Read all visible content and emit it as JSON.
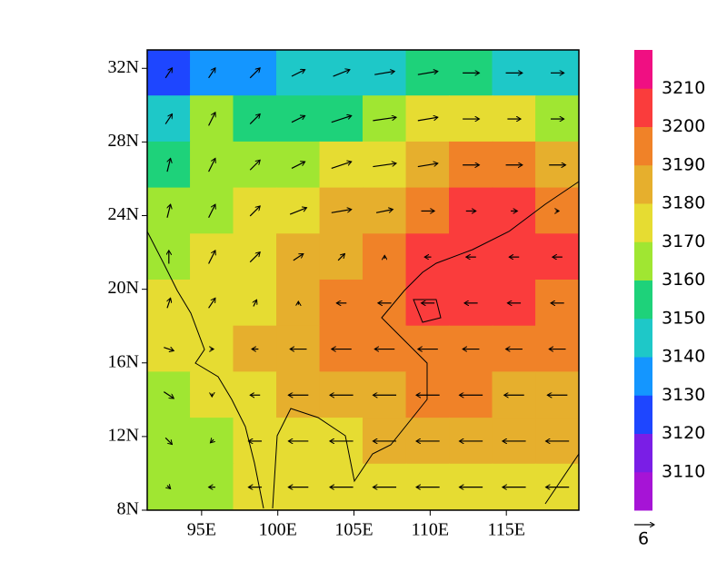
{
  "chart_data": {
    "type": "contour_map",
    "xlim": [
      91.43,
      119.76
    ],
    "ylim": [
      8,
      33
    ],
    "xticks": [
      {
        "value": 95,
        "label": "95E"
      },
      {
        "value": 100,
        "label": "100E"
      },
      {
        "value": 105,
        "label": "105E"
      },
      {
        "value": 110,
        "label": "110E"
      },
      {
        "value": 115,
        "label": "115E"
      }
    ],
    "yticks": [
      {
        "value": 8,
        "label": "8N"
      },
      {
        "value": 12,
        "label": "12N"
      },
      {
        "value": 16,
        "label": "16N"
      },
      {
        "value": 20,
        "label": "20N"
      },
      {
        "value": 24,
        "label": "24N"
      },
      {
        "value": 28,
        "label": "28N"
      },
      {
        "value": 32,
        "label": "32N"
      }
    ],
    "colorbar": {
      "levels": [
        3110,
        3120,
        3130,
        3140,
        3150,
        3160,
        3170,
        3180,
        3190,
        3200,
        3210
      ],
      "colors": [
        "#a614d6",
        "#7a1ee6",
        "#1e46ff",
        "#1496ff",
        "#1ec8c8",
        "#1ed27a",
        "#a0e632",
        "#e6dc32",
        "#e6af2d",
        "#f08228",
        "#fa3c3c",
        "#f00f82"
      ]
    },
    "reference_vector": 6,
    "grid": {
      "lon": [
        92.85,
        95.68,
        98.51,
        101.35,
        104.18,
        107.01,
        109.85,
        112.68,
        115.51,
        118.35
      ],
      "lat": [
        31.75,
        29.25,
        26.75,
        24.25,
        21.75,
        19.25,
        16.75,
        14.25,
        11.75,
        9.25
      ],
      "height": [
        [
          3125,
          3135,
          3138,
          3142,
          3145,
          3148,
          3150,
          3150,
          3145,
          3140
        ],
        [
          3140,
          3160,
          3155,
          3150,
          3158,
          3165,
          3172,
          3175,
          3170,
          3165
        ],
        [
          3150,
          3168,
          3165,
          3162,
          3170,
          3178,
          3185,
          3190,
          3190,
          3188
        ],
        [
          3160,
          3168,
          3172,
          3178,
          3182,
          3188,
          3195,
          3200,
          3202,
          3198
        ],
        [
          3165,
          3172,
          3176,
          3185,
          3188,
          3195,
          3202,
          3205,
          3205,
          3200
        ],
        [
          3172,
          3175,
          3178,
          3185,
          3190,
          3195,
          3202,
          3203,
          3202,
          3196
        ],
        [
          3170,
          3175,
          3180,
          3182,
          3190,
          3192,
          3195,
          3198,
          3195,
          3192
        ],
        [
          3165,
          3170,
          3175,
          3180,
          3185,
          3188,
          3190,
          3190,
          3188,
          3186
        ],
        [
          3162,
          3168,
          3172,
          3176,
          3178,
          3182,
          3185,
          3183,
          3182,
          3180
        ],
        [
          3162,
          3165,
          3170,
          3172,
          3175,
          3178,
          3178,
          3176,
          3178,
          3178
        ]
      ],
      "u": [
        [
          2,
          2,
          3,
          4,
          5,
          6,
          6,
          5,
          5,
          4
        ],
        [
          2,
          2,
          3,
          4,
          6,
          7,
          6,
          5,
          4,
          4
        ],
        [
          1,
          2,
          3,
          4,
          6,
          7,
          6,
          5,
          5,
          5
        ],
        [
          1,
          2,
          3,
          5,
          6,
          5,
          4,
          3,
          2,
          1
        ],
        [
          0,
          2,
          3,
          3,
          2,
          0,
          -2,
          -3,
          -3,
          -3
        ],
        [
          1,
          2,
          1,
          0,
          -3,
          -4,
          -4,
          -4,
          -4,
          -4
        ],
        [
          3,
          1,
          -2,
          -5,
          -6,
          -6,
          -6,
          -5,
          -5,
          -5
        ],
        [
          3,
          0,
          -3,
          -6,
          -7,
          -7,
          -7,
          -7,
          -6,
          -6
        ],
        [
          2,
          -1,
          -4,
          -6,
          -7,
          -7,
          -7,
          -7,
          -7,
          -7
        ],
        [
          1,
          -2,
          -4,
          -6,
          -7,
          -7,
          -7,
          -7,
          -7,
          -7
        ]
      ],
      "v": [
        [
          3,
          3,
          3,
          2,
          2,
          1,
          1,
          0,
          0,
          0
        ],
        [
          3,
          4,
          3,
          2,
          2,
          1,
          1,
          0,
          0,
          0
        ],
        [
          4,
          4,
          3,
          2,
          2,
          1,
          1,
          0,
          0,
          0
        ],
        [
          4,
          4,
          3,
          2,
          1,
          1,
          0,
          0,
          0,
          0
        ],
        [
          4,
          4,
          3,
          2,
          2,
          1,
          0,
          0,
          0,
          0
        ],
        [
          3,
          3,
          2,
          1,
          0,
          0,
          0,
          0,
          0,
          0
        ],
        [
          -1,
          0,
          0,
          0,
          0,
          0,
          0,
          0,
          0,
          0
        ],
        [
          -2,
          -1,
          0,
          0,
          0,
          0,
          0,
          0,
          0,
          0
        ],
        [
          -2,
          -1,
          0,
          0,
          0,
          0,
          0,
          0,
          0,
          0
        ],
        [
          -1,
          0,
          0,
          0,
          0,
          0,
          0,
          0,
          0,
          0
        ]
      ]
    }
  }
}
